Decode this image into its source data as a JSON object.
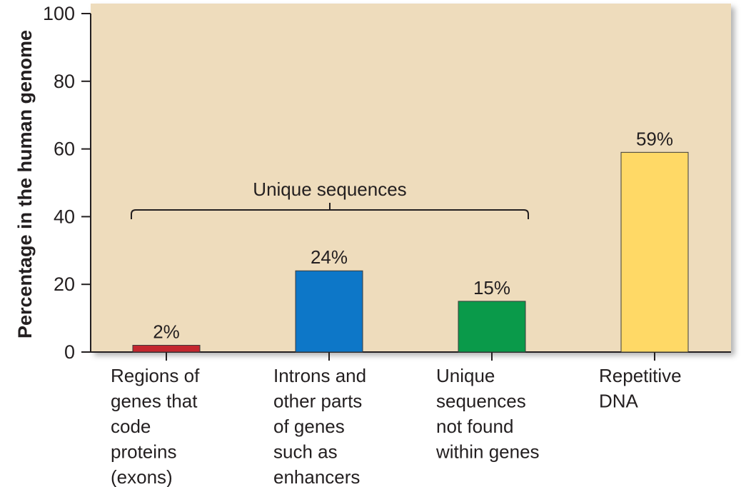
{
  "chart_data": {
    "type": "bar",
    "ylabel": "Percentage in the human genome",
    "xlabel": "",
    "title": "",
    "ylim": [
      0,
      100
    ],
    "yticks": [
      0,
      20,
      40,
      60,
      80,
      100
    ],
    "grid": false,
    "legend": "none",
    "background_color": "#eedcbc",
    "categories": [
      [
        "Regions of",
        "genes that",
        "code",
        "proteins",
        "(exons)"
      ],
      [
        "Introns and",
        "other parts",
        "of genes",
        "such as",
        "enhancers"
      ],
      [
        "Unique",
        "sequences",
        "not found",
        "within genes"
      ],
      [
        "Repetitive",
        "DNA"
      ]
    ],
    "values": [
      2,
      24,
      15,
      59
    ],
    "value_labels": [
      "2%",
      "24%",
      "15%",
      "59%"
    ],
    "colors": [
      "#c4262e",
      "#0d77c8",
      "#0a9a4a",
      "#ffd966"
    ],
    "annotation": {
      "text": "Unique sequences",
      "spans_categories": [
        0,
        2
      ]
    }
  }
}
